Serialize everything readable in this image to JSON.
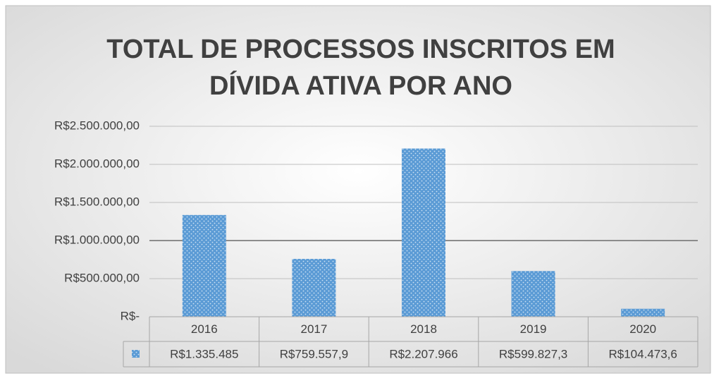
{
  "chart_data": {
    "type": "bar",
    "title": [
      "TOTAL DE PROCESSOS INSCRITOS EM",
      "DÍVIDA ATIVA POR ANO"
    ],
    "categories": [
      "2016",
      "2017",
      "2018",
      "2019",
      "2020"
    ],
    "values": [
      1335485,
      759557.9,
      2207966,
      599827.3,
      104473.6
    ],
    "value_labels": [
      "R$1.335.485",
      "R$759.557,9",
      "R$2.207.966",
      "R$599.827,3",
      "R$104.473,6"
    ],
    "color": "#5b9bd5",
    "ylim": [
      0,
      2500000
    ],
    "yticks": [
      {
        "value": 0,
        "label": "R$-"
      },
      {
        "value": 500000,
        "label": "R$500.000,00"
      },
      {
        "value": 1000000,
        "label": "R$1.000.000,00"
      },
      {
        "value": 1500000,
        "label": "R$1.500.000,00"
      },
      {
        "value": 2000000,
        "label": "R$2.000.000,00"
      },
      {
        "value": 2500000,
        "label": "R$2.500.000,00"
      }
    ],
    "grid": true,
    "data_table": true
  }
}
